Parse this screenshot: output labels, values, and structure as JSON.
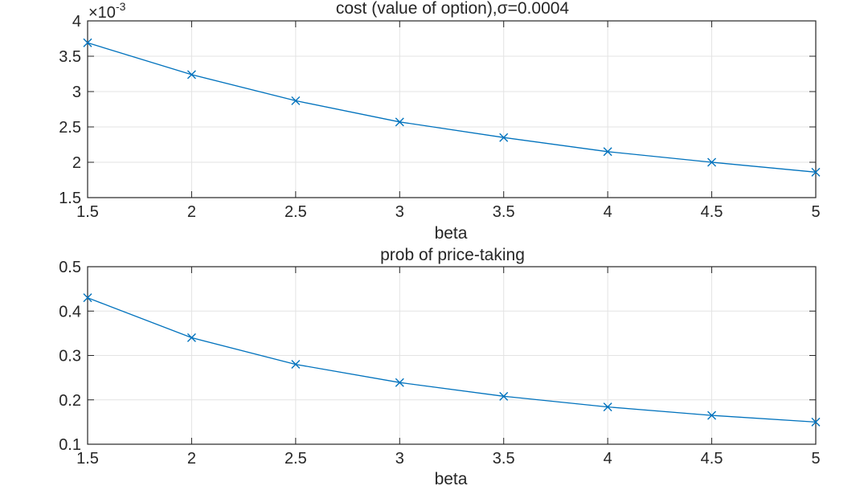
{
  "chart_data": [
    {
      "type": "line",
      "title": "cost (value of option),σ=0.0004",
      "xlabel": "beta",
      "ylabel": "",
      "exponent_label": "×10",
      "exponent_power": "-3",
      "xlim": [
        1.5,
        5
      ],
      "ylim": [
        1.5,
        4
      ],
      "xticks": [
        1.5,
        2,
        2.5,
        3,
        3.5,
        4,
        4.5,
        5
      ],
      "xtick_labels": [
        "1.5",
        "2",
        "2.5",
        "3",
        "3.5",
        "4",
        "4.5",
        "5"
      ],
      "yticks": [
        1.5,
        2,
        2.5,
        3,
        3.5,
        4
      ],
      "ytick_labels": [
        "1.5",
        "2",
        "2.5",
        "3",
        "3.5",
        "4"
      ],
      "grid": true,
      "marker": "x",
      "color": "#0072BD",
      "series": [
        {
          "x": [
            1.5,
            2,
            2.5,
            3,
            3.5,
            4,
            4.5,
            5
          ],
          "values": [
            3.69,
            3.24,
            2.87,
            2.57,
            2.35,
            2.15,
            2.0,
            1.86
          ]
        }
      ]
    },
    {
      "type": "line",
      "title": "prob of price-taking",
      "xlabel": "beta",
      "ylabel": "",
      "xlim": [
        1.5,
        5
      ],
      "ylim": [
        0.1,
        0.5
      ],
      "xticks": [
        1.5,
        2,
        2.5,
        3,
        3.5,
        4,
        4.5,
        5
      ],
      "xtick_labels": [
        "1.5",
        "2",
        "2.5",
        "3",
        "3.5",
        "4",
        "4.5",
        "5"
      ],
      "yticks": [
        0.1,
        0.2,
        0.3,
        0.4,
        0.5
      ],
      "ytick_labels": [
        "0.1",
        "0.2",
        "0.3",
        "0.4",
        "0.5"
      ],
      "grid": true,
      "marker": "x",
      "color": "#0072BD",
      "series": [
        {
          "x": [
            1.5,
            2,
            2.5,
            3,
            3.5,
            4,
            4.5,
            5
          ],
          "values": [
            0.43,
            0.34,
            0.28,
            0.239,
            0.208,
            0.184,
            0.165,
            0.15
          ]
        }
      ]
    }
  ]
}
